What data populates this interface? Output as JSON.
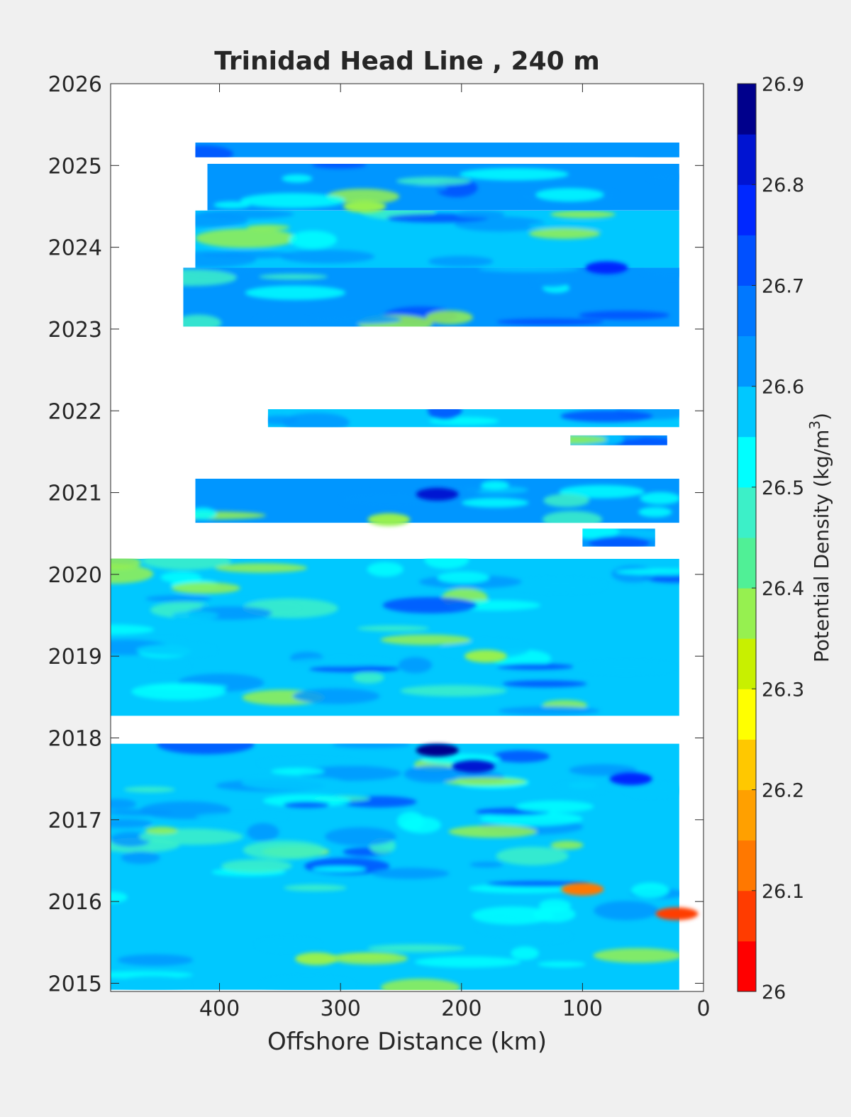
{
  "chart_data": {
    "type": "heatmap",
    "title": "Trinidad Head Line , 240 m",
    "xlabel": "Offshore Distance (km)",
    "ylabel": "",
    "xlim": [
      490,
      0
    ],
    "ylim": [
      2014.9,
      2026
    ],
    "x_ticks": [
      "400",
      "300",
      "200",
      "100",
      "0"
    ],
    "x_tick_values": [
      400,
      300,
      200,
      100,
      0
    ],
    "y_ticks": [
      "2015",
      "2016",
      "2017",
      "2018",
      "2019",
      "2020",
      "2021",
      "2022",
      "2023",
      "2024",
      "2025",
      "2026"
    ],
    "y_tick_values": [
      2015,
      2016,
      2017,
      2018,
      2019,
      2020,
      2021,
      2022,
      2023,
      2024,
      2025,
      2026
    ],
    "colorbar": {
      "label": "Potential Density (kg/m",
      "label_superscript": "3",
      "label_close": ")",
      "range": [
        26.0,
        26.9
      ],
      "ticks": [
        "26.9",
        "26.8",
        "26.7",
        "26.6",
        "26.5",
        "26.4",
        "26.3",
        "26.2",
        "26.1",
        "26"
      ],
      "tick_values": [
        26.9,
        26.8,
        26.7,
        26.6,
        26.5,
        26.4,
        26.3,
        26.2,
        26.1,
        26.0
      ],
      "levels": [
        "#ff0000",
        "#ff3c00",
        "#ff7800",
        "#ffa000",
        "#ffc800",
        "#ffff00",
        "#c8f000",
        "#96f050",
        "#50f096",
        "#3cf0c8",
        "#00ffff",
        "#00c8ff",
        "#0096ff",
        "#0078ff",
        "#0050ff",
        "#0028ff",
        "#0014d2",
        "#00008c"
      ]
    },
    "data_bands": [
      {
        "t_start": 2014.92,
        "t_end": 2017.93,
        "x_near": 20,
        "x_far": 490,
        "dominant_density": 26.55
      },
      {
        "t_start": 2018.27,
        "t_end": 2020.19,
        "x_near": 20,
        "x_far": 490,
        "dominant_density": 26.58
      },
      {
        "t_start": 2020.34,
        "t_end": 2020.56,
        "x_near": 40,
        "x_far": 100,
        "dominant_density": 26.62
      },
      {
        "t_start": 2020.63,
        "t_end": 2021.17,
        "x_near": 20,
        "x_far": 420,
        "dominant_density": 26.6
      },
      {
        "t_start": 2021.58,
        "t_end": 2021.7,
        "x_near": 30,
        "x_far": 110,
        "dominant_density": 26.62
      },
      {
        "t_start": 2021.8,
        "t_end": 2022.02,
        "x_near": 20,
        "x_far": 360,
        "dominant_density": 26.55
      },
      {
        "t_start": 2023.03,
        "t_end": 2023.75,
        "x_near": 20,
        "x_far": 430,
        "dominant_density": 26.6
      },
      {
        "t_start": 2023.75,
        "t_end": 2024.45,
        "x_near": 20,
        "x_far": 420,
        "dominant_density": 26.58
      },
      {
        "t_start": 2024.45,
        "t_end": 2025.02,
        "x_near": 20,
        "x_far": 410,
        "dominant_density": 26.6
      },
      {
        "t_start": 2025.1,
        "t_end": 2025.28,
        "x_near": 20,
        "x_far": 420,
        "dominant_density": 26.62
      }
    ],
    "features": [
      {
        "x": 80,
        "t": 2023.75,
        "density": 26.75
      },
      {
        "x": 220,
        "t": 2020.98,
        "density": 26.8
      },
      {
        "x": 220,
        "t": 2017.85,
        "density": 26.85
      },
      {
        "x": 190,
        "t": 2017.65,
        "density": 26.8
      },
      {
        "x": 60,
        "t": 2017.5,
        "density": 26.75
      },
      {
        "x": 100,
        "t": 2016.15,
        "density": 26.15
      },
      {
        "x": 22,
        "t": 2015.85,
        "density": 26.05
      },
      {
        "x": 180,
        "t": 2019.0,
        "density": 26.35
      },
      {
        "x": 260,
        "t": 2020.67,
        "density": 26.35
      },
      {
        "x": 280,
        "t": 2024.5,
        "density": 26.35
      },
      {
        "x": 320,
        "t": 2015.3,
        "density": 26.4
      }
    ]
  }
}
